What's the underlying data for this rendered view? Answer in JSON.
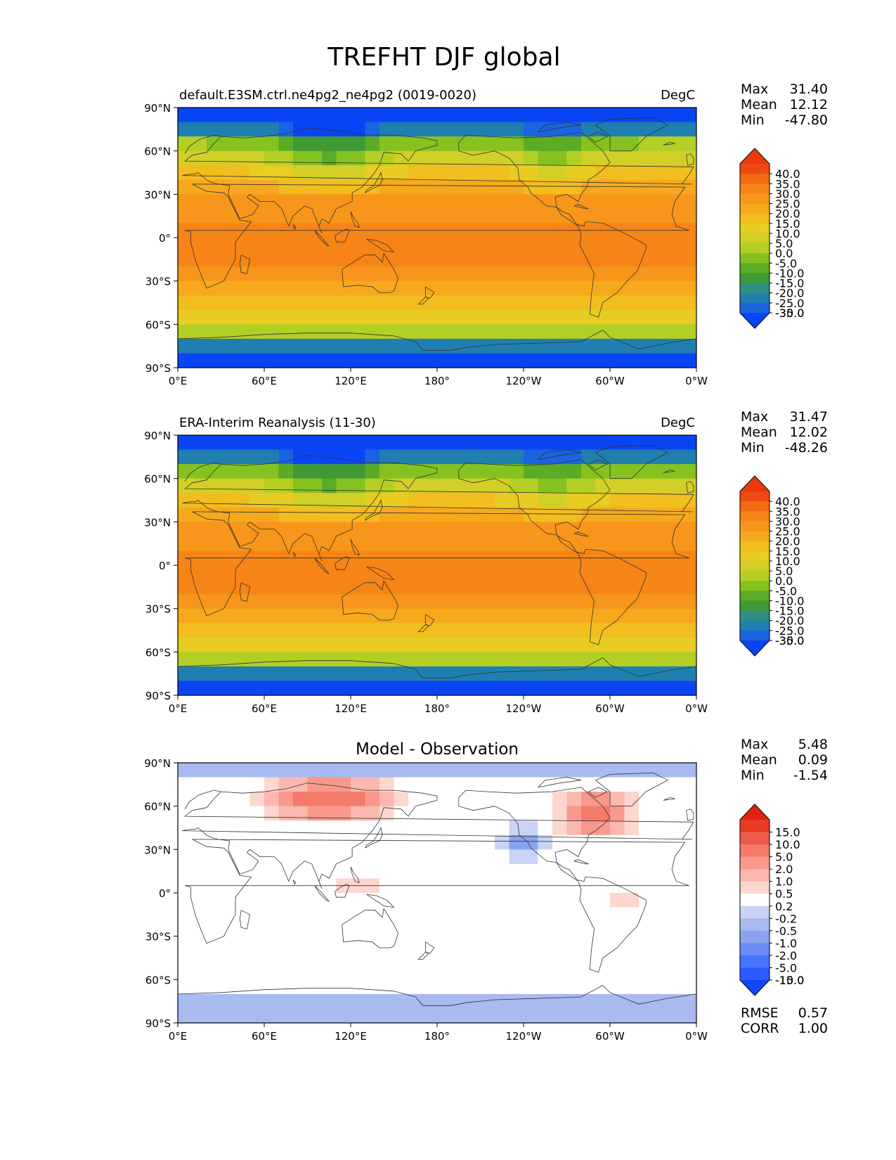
{
  "title": "TREFHT DJF global",
  "panels": [
    {
      "title_left": "default.E3SM.ctrl.ne4pg2_ne4pg2 (0019-0020)",
      "title_center": "",
      "units": "DegC",
      "stats": [
        {
          "label": "Max",
          "value": "31.40"
        },
        {
          "label": "Mean",
          "value": "12.12"
        },
        {
          "label": "Min",
          "value": "-47.80"
        }
      ],
      "colorbar_labels": [
        "40.0",
        "35.0",
        "30.0",
        "25.0",
        "20.0",
        "15.0",
        "10.0",
        "5.0",
        "0.0",
        "-5.0",
        "-10.0",
        "-15.0",
        "-20.0",
        "-25.0",
        "-30.0",
        "-35.0"
      ]
    },
    {
      "title_left": "ERA-Interim Reanalysis (11-30)",
      "title_center": "",
      "units": "DegC",
      "stats": [
        {
          "label": "Max",
          "value": "31.47"
        },
        {
          "label": "Mean",
          "value": "12.02"
        },
        {
          "label": "Min",
          "value": "-48.26"
        }
      ],
      "colorbar_labels": [
        "40.0",
        "35.0",
        "30.0",
        "25.0",
        "20.0",
        "15.0",
        "10.0",
        "5.0",
        "0.0",
        "-5.0",
        "-10.0",
        "-15.0",
        "-20.0",
        "-25.0",
        "-30.0",
        "-35.0"
      ]
    },
    {
      "title_left": "",
      "title_center": "Model - Observation",
      "units": "",
      "stats": [
        {
          "label": "Max",
          "value": "5.48"
        },
        {
          "label": "Mean",
          "value": "0.09"
        },
        {
          "label": "Min",
          "value": "-1.54"
        }
      ],
      "extra_stats": [
        {
          "label": "RMSE",
          "value": "0.57"
        },
        {
          "label": "CORR",
          "value": "1.00"
        }
      ],
      "colorbar_labels": [
        "15.0",
        "10.0",
        "5.0",
        "2.0",
        "1.0",
        "0.5",
        "0.2",
        "-0.2",
        "-0.5",
        "-1.0",
        "-2.0",
        "-5.0",
        "-10.0",
        "-15.0"
      ]
    }
  ],
  "axes": {
    "lat_ticks": [
      "90°N",
      "60°N",
      "30°N",
      "0°",
      "30°S",
      "60°S",
      "90°S"
    ],
    "lon_ticks": [
      "0°E",
      "60°E",
      "120°E",
      "180°",
      "120°W",
      "60°W",
      "0°W"
    ]
  },
  "colors": {
    "temp_scale": [
      "#0a45f5",
      "#1a64e0",
      "#1f7fb0",
      "#2e8f80",
      "#3f9a35",
      "#5aab25",
      "#86c21f",
      "#b4cf24",
      "#d2cf28",
      "#e8cc22",
      "#f2bd1e",
      "#f6a91c",
      "#f7961a",
      "#f78417",
      "#f26b14",
      "#ec4a10",
      "#e83a0d"
    ],
    "diff_scale": [
      "#1544ff",
      "#2e5bff",
      "#4a73ff",
      "#6b8cf7",
      "#8aa3f0",
      "#a8baf0",
      "#c9d4f5",
      "#ffffff",
      "#fdd6d0",
      "#fbb8ae",
      "#f8998c",
      "#f47a6a",
      "#ee5a48",
      "#e83a26",
      "#e22010"
    ],
    "coast": "#333333"
  },
  "chart_data": [
    {
      "type": "heatmap",
      "title": "default.E3SM.ctrl.ne4pg2_ne4pg2 (0019-0020)",
      "units": "DegC",
      "x": "longitude",
      "y": "latitude",
      "xlim": [
        0,
        360
      ],
      "ylim": [
        -90,
        90
      ],
      "levels": [
        -35,
        -30,
        -25,
        -20,
        -15,
        -10,
        -5,
        0,
        5,
        10,
        15,
        20,
        25,
        30,
        35,
        40
      ],
      "max": 31.4,
      "mean": 12.12,
      "min": -47.8
    },
    {
      "type": "heatmap",
      "title": "ERA-Interim Reanalysis (11-30)",
      "units": "DegC",
      "x": "longitude",
      "y": "latitude",
      "xlim": [
        0,
        360
      ],
      "ylim": [
        -90,
        90
      ],
      "levels": [
        -35,
        -30,
        -25,
        -20,
        -15,
        -10,
        -5,
        0,
        5,
        10,
        15,
        20,
        25,
        30,
        35,
        40
      ],
      "max": 31.47,
      "mean": 12.02,
      "min": -48.26
    },
    {
      "type": "heatmap",
      "title": "Model - Observation",
      "x": "longitude",
      "y": "latitude",
      "xlim": [
        0,
        360
      ],
      "ylim": [
        -90,
        90
      ],
      "levels": [
        -15,
        -10,
        -5,
        -2,
        -1,
        -0.5,
        -0.2,
        0.2,
        0.5,
        1,
        2,
        5,
        10,
        15
      ],
      "max": 5.48,
      "mean": 0.09,
      "min": -1.54,
      "rmse": 0.57,
      "corr": 1.0
    }
  ]
}
